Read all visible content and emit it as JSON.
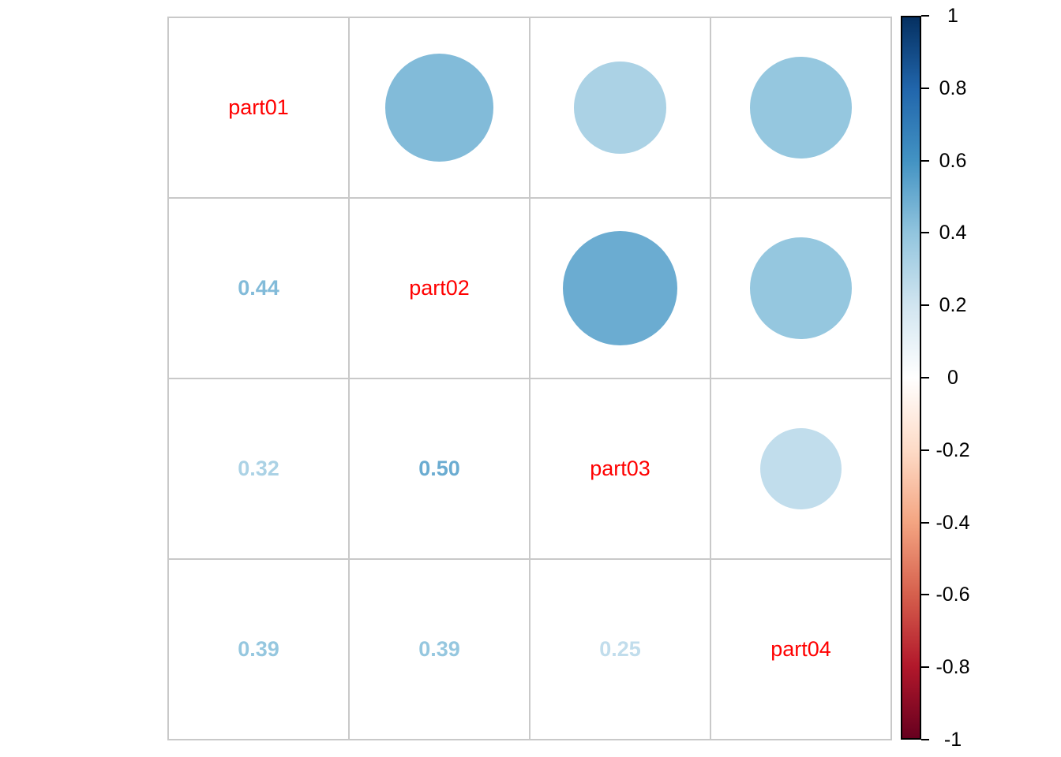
{
  "chart_data": {
    "type": "heatmap",
    "subtype": "correlation-matrix-mixed",
    "description": "corrplot-style mixed correlation plot: diagonal = variable labels, upper triangle = circles sized/colored by correlation, lower triangle = numeric correlation values colored by magnitude",
    "variables": [
      "part01",
      "part02",
      "part03",
      "part04"
    ],
    "matrix": [
      [
        1.0,
        0.44,
        0.32,
        0.39
      ],
      [
        0.44,
        1.0,
        0.5,
        0.39
      ],
      [
        0.32,
        0.5,
        1.0,
        0.25
      ],
      [
        0.39,
        0.39,
        0.25,
        1.0
      ]
    ],
    "lower_triangle_texts": [
      {
        "row": 1,
        "col": 0,
        "text": "0.44"
      },
      {
        "row": 2,
        "col": 0,
        "text": "0.32"
      },
      {
        "row": 2,
        "col": 1,
        "text": "0.50"
      },
      {
        "row": 3,
        "col": 0,
        "text": "0.39"
      },
      {
        "row": 3,
        "col": 1,
        "text": "0.39"
      },
      {
        "row": 3,
        "col": 2,
        "text": "0.25"
      }
    ],
    "layout_hints": {
      "upper_triangle": "circles",
      "lower_triangle": "numbers",
      "diagonal": "labels",
      "legend_position": "right",
      "grid": true,
      "max_circle_diameter_fraction_of_cell": 0.9
    },
    "colors": {
      "label_color": "#ff0000",
      "grid_color": "#c9c9c9",
      "background": "#ffffff",
      "colorbar_border": "#000000"
    },
    "palette": {
      "domain": [
        -1,
        1
      ],
      "stops": [
        {
          "value": -1.0,
          "color": "#67001F"
        },
        {
          "value": -0.8,
          "color": "#B2182B"
        },
        {
          "value": -0.6,
          "color": "#D6604D"
        },
        {
          "value": -0.4,
          "color": "#F4A582"
        },
        {
          "value": -0.2,
          "color": "#FDDBC7"
        },
        {
          "value": 0.0,
          "color": "#FFFFFF"
        },
        {
          "value": 0.2,
          "color": "#D1E5F0"
        },
        {
          "value": 0.4,
          "color": "#92C5DE"
        },
        {
          "value": 0.6,
          "color": "#4393C3"
        },
        {
          "value": 0.8,
          "color": "#2166AC"
        },
        {
          "value": 1.0,
          "color": "#053061"
        }
      ]
    },
    "colorbar": {
      "min": -1,
      "max": 1,
      "ticks": [
        {
          "value": 1.0,
          "label": "1"
        },
        {
          "value": 0.8,
          "label": "0.8"
        },
        {
          "value": 0.6,
          "label": "0.6"
        },
        {
          "value": 0.4,
          "label": "0.4"
        },
        {
          "value": 0.2,
          "label": "0.2"
        },
        {
          "value": 0.0,
          "label": "0"
        },
        {
          "value": -0.2,
          "label": "-0.2"
        },
        {
          "value": -0.4,
          "label": "-0.4"
        },
        {
          "value": -0.6,
          "label": "-0.6"
        },
        {
          "value": -0.8,
          "label": "-0.8"
        },
        {
          "value": -1.0,
          "label": "-1"
        }
      ]
    }
  }
}
